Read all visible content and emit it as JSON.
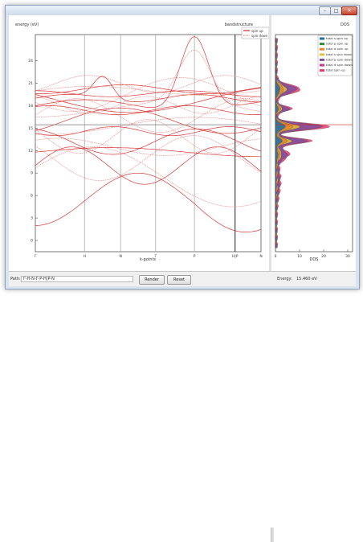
{
  "window": {
    "minimize_glyph": "–",
    "maximize_glyph": "□",
    "close_glyph": "✕"
  },
  "bands": {
    "title": "bandstructure",
    "ylabel": "energy (eV)",
    "xlabel": "k-points",
    "ylim": [
      -1.5,
      27.5
    ],
    "yticks": [
      "0",
      "3",
      "6",
      "9",
      "12",
      "15",
      "18",
      "21",
      "24"
    ],
    "kpoints": [
      "Γ",
      "H",
      "N",
      "Γ",
      "P",
      "H|P",
      "N"
    ],
    "legend": [
      "spin up",
      "spin down"
    ],
    "colors": {
      "up": "#d42424",
      "down": "#e88888",
      "fermi": "#777777"
    }
  },
  "dos": {
    "title": "DOS",
    "xlabel": "DOS",
    "xticks": [
      "0",
      "10",
      "20",
      "30"
    ],
    "legend": [
      {
        "label": "total s spin up",
        "color": "#1f6fa8"
      },
      {
        "label": "total p spin up",
        "color": "#2f8c3a"
      },
      {
        "label": "total d spin up",
        "color": "#e8842a"
      },
      {
        "label": "total s spin down",
        "color": "#e3c23a"
      },
      {
        "label": "total p spin down",
        "color": "#7a4fa0"
      },
      {
        "label": "total d spin down",
        "color": "#c23a8a"
      },
      {
        "label": "total spin up",
        "color": "#e83a6a"
      }
    ]
  },
  "bottom": {
    "path_label": "Path:",
    "path_value": "Γ-H-N-Γ-P-H|P-N",
    "render_label": "Render",
    "reset_label": "Reset",
    "energy_label": "Energy:",
    "energy_value": "15.460 eV"
  }
}
